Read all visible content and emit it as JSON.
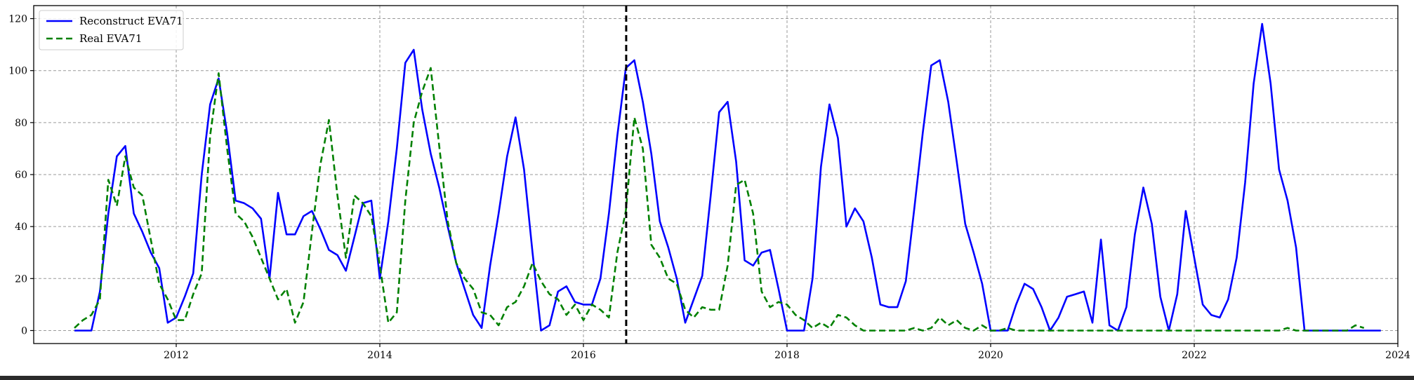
{
  "chart_data": {
    "type": "line",
    "title": "",
    "xlabel": "",
    "ylabel": "",
    "xlim": [
      2010.6,
      2024.0
    ],
    "ylim": [
      -5,
      125
    ],
    "x_ticks": [
      2012,
      2014,
      2016,
      2018,
      2020,
      2022,
      2024
    ],
    "y_ticks": [
      0,
      20,
      40,
      60,
      80,
      100,
      120
    ],
    "grid": true,
    "legend_position": "top-left",
    "x_start": 2011.0,
    "x_step_months": 1,
    "vertical_marker": {
      "x": 2016.42,
      "style": "dashed",
      "color": "#000000"
    },
    "series": [
      {
        "name": "Reconstruct EVA71",
        "color": "#0000ff",
        "style": "solid",
        "values": [
          0,
          0,
          0,
          15,
          45,
          67,
          71,
          45,
          38,
          30,
          24,
          3,
          5,
          13,
          22,
          60,
          87,
          97,
          76,
          50,
          49,
          47,
          43,
          20,
          53,
          37,
          37,
          44,
          46,
          39,
          31,
          29,
          23,
          36,
          49,
          50,
          20,
          42,
          70,
          103,
          108,
          85,
          68,
          55,
          40,
          26,
          16,
          6,
          1,
          25,
          45,
          67,
          82,
          62,
          30,
          0,
          2,
          15,
          17,
          11,
          10,
          10,
          20,
          45,
          75,
          101,
          104,
          88,
          68,
          42,
          32,
          20,
          3,
          12,
          21,
          52,
          84,
          88,
          65,
          27,
          25,
          30,
          31,
          16,
          0,
          0,
          0,
          20,
          63,
          87,
          74,
          40,
          47,
          42,
          28,
          10,
          9,
          9,
          19,
          47,
          76,
          102,
          104,
          88,
          65,
          41,
          30,
          18,
          0,
          0,
          0,
          10,
          18,
          16,
          9,
          0,
          5,
          13,
          14,
          15,
          3,
          35,
          2,
          0,
          9,
          37,
          55,
          41,
          13,
          0,
          14,
          46,
          28,
          10,
          6,
          5,
          12,
          28,
          57,
          95,
          118,
          95,
          62,
          50,
          32,
          0,
          0,
          0,
          0,
          0,
          0,
          0,
          0,
          0,
          0
        ]
      },
      {
        "name": "Real EVA71",
        "color": "#008000",
        "style": "dashed",
        "values": [
          1,
          4,
          6,
          12,
          58,
          48,
          67,
          55,
          52,
          35,
          18,
          12,
          4,
          4,
          14,
          22,
          75,
          99,
          70,
          45,
          42,
          36,
          28,
          20,
          12,
          16,
          3,
          11,
          38,
          64,
          81,
          52,
          28,
          52,
          49,
          44,
          25,
          3,
          7,
          50,
          80,
          92,
          101,
          71,
          42,
          26,
          20,
          16,
          7,
          6,
          2,
          9,
          11,
          17,
          26,
          19,
          14,
          12,
          6,
          10,
          4,
          10,
          8,
          5,
          30,
          46,
          82,
          70,
          33,
          28,
          20,
          18,
          8,
          5,
          9,
          8,
          8,
          25,
          56,
          58,
          45,
          15,
          9,
          11,
          10,
          6,
          4,
          1,
          3,
          1,
          6,
          5,
          2,
          0,
          0,
          0,
          0,
          0,
          0,
          1,
          0,
          1,
          5,
          2,
          4,
          1,
          0,
          2,
          0,
          0,
          1,
          0,
          0,
          0,
          0,
          0,
          0,
          0,
          0,
          0,
          0,
          0,
          0,
          0,
          0,
          0,
          0,
          0,
          0,
          0,
          0,
          0,
          0,
          0,
          0,
          0,
          0,
          0,
          0,
          0,
          0,
          0,
          0,
          1,
          0,
          0,
          0,
          0,
          0,
          0,
          0,
          2,
          1
        ]
      }
    ]
  }
}
